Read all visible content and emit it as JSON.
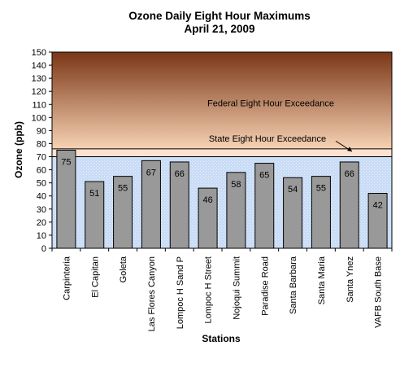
{
  "chart_data": {
    "type": "bar",
    "title": "Ozone Daily Eight Hour Maximums",
    "subtitle": "April 21, 2009",
    "xlabel": "Stations",
    "ylabel": "Ozone (ppb)",
    "ylim": [
      0,
      150
    ],
    "yticks": [
      0,
      10,
      20,
      30,
      40,
      50,
      60,
      70,
      80,
      90,
      100,
      110,
      120,
      130,
      140,
      150
    ],
    "categories": [
      "Carpinteria",
      "El Capitan",
      "Goleta",
      "Las Flores Canyon",
      "Lompoc H Sand P",
      "Lompoc H Street",
      "Nojoqui Summit",
      "Paradise Road",
      "Santa Barbara",
      "Santa Maria",
      "Santa Ynez",
      "VAFB South Base"
    ],
    "values": [
      75,
      51,
      55,
      67,
      66,
      46,
      58,
      65,
      54,
      55,
      66,
      42
    ],
    "data_labels": [
      "75",
      "51",
      "55",
      "67",
      "66",
      "46",
      "58",
      "65",
      "54",
      "55",
      "66",
      "42"
    ],
    "bands": [
      {
        "label": "Federal Eight Hour Exceedance",
        "from": 76,
        "to": 150
      },
      {
        "label": "State Eight Hour Exceedance",
        "from": 70,
        "to": 76
      }
    ],
    "grid": false,
    "legend": "none",
    "colors": {
      "bar": "#999999",
      "federal_top": "#7a3616",
      "federal_bottom": "#f7d2b4",
      "state": "#fde3cf",
      "background": "#c9dcf6"
    }
  }
}
